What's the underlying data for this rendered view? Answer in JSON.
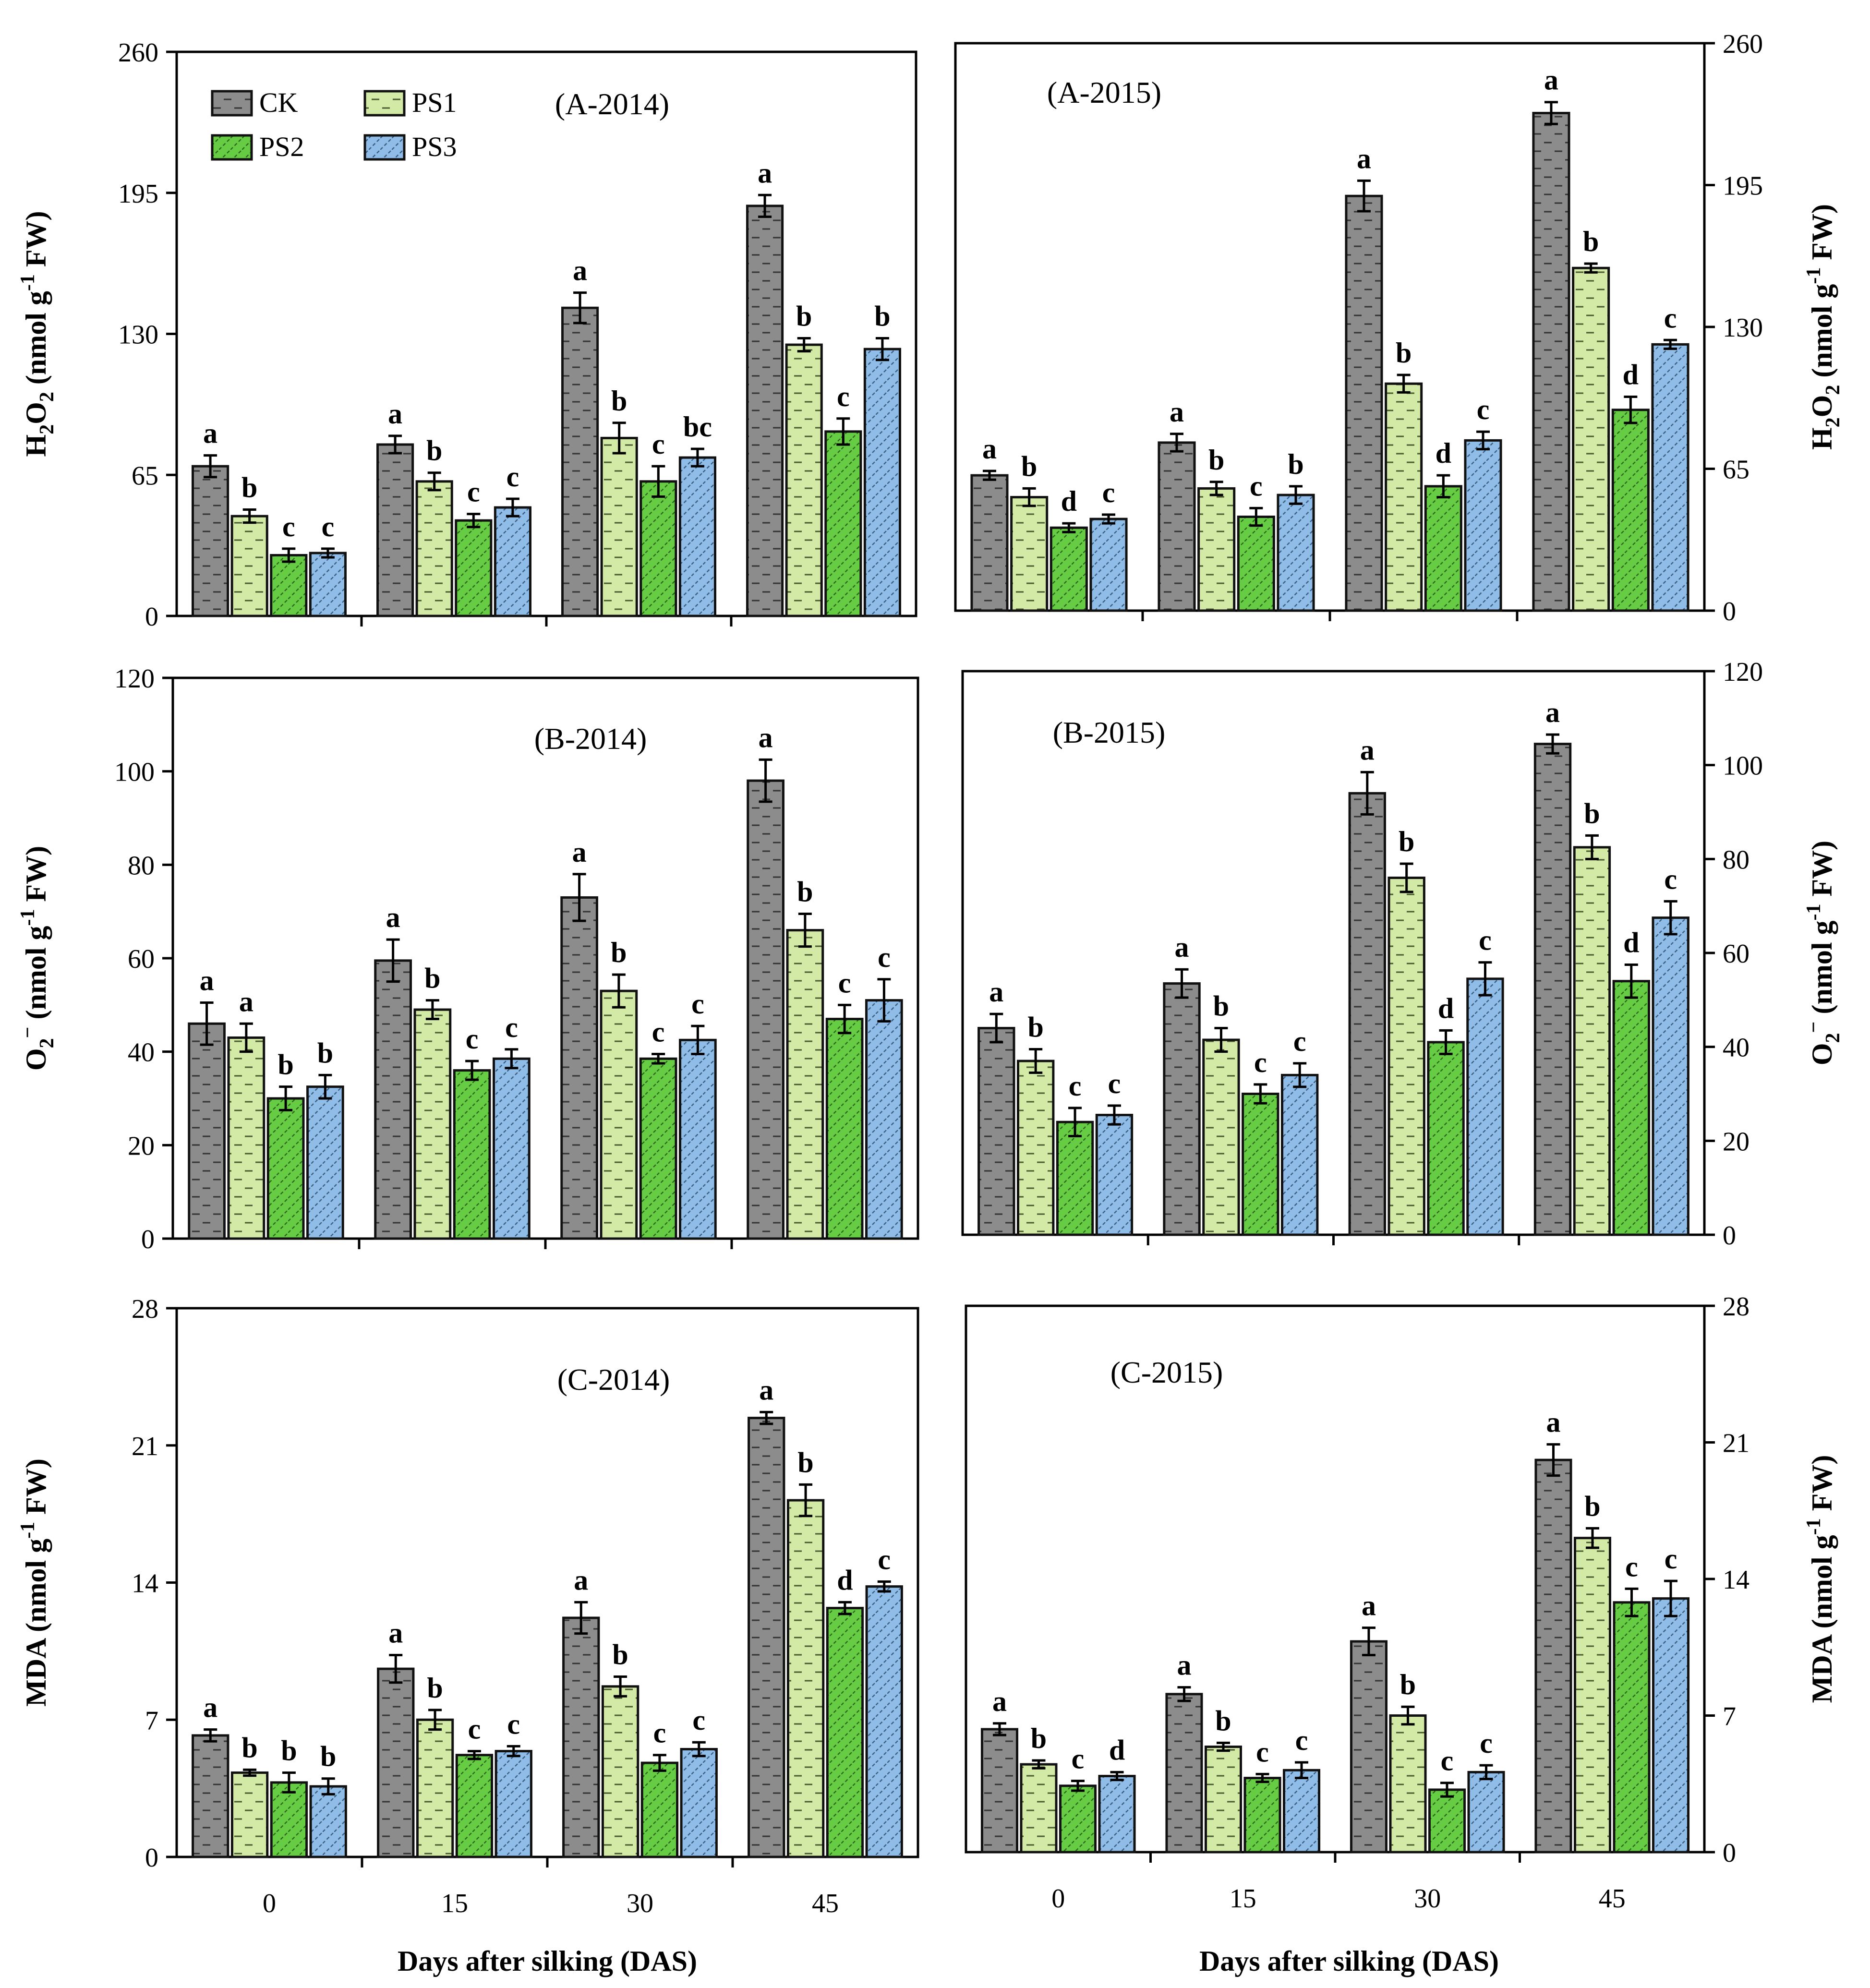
{
  "figure": {
    "series_names": [
      "CK",
      "PS1",
      "PS2",
      "PS3"
    ],
    "colors": {
      "CK": "#8c8c8c",
      "PS1": "#d3e9a6",
      "PS2": "#66cc44",
      "PS3": "#8fbde7"
    },
    "x_axis_title": "Days after silking (DAS)",
    "x_tick_labels": [
      "0",
      "15",
      "30",
      "45"
    ]
  },
  "chart_data": [
    {
      "type": "bar",
      "title": "(A-2014)",
      "categories": [
        "0",
        "15",
        "30",
        "45"
      ],
      "xlabel": "Days after silking (DAS)",
      "ylabel_main": "H",
      "ylabel_sub1": "2",
      "ylabel_mid": "O",
      "ylabel_sub2": "2",
      "ylabel_unit": " (nmol g",
      "ylabel_exp": "-1",
      "ylabel_end": " FW)",
      "ylim": [
        0,
        260
      ],
      "yticks": [
        "0",
        "65",
        "130",
        "195",
        "260"
      ],
      "series": [
        {
          "name": "CK",
          "values": [
            69,
            79,
            142,
            189
          ],
          "errors": [
            5,
            4,
            7,
            5
          ],
          "letters": [
            "a",
            "a",
            "a",
            "a"
          ]
        },
        {
          "name": "PS1",
          "values": [
            46,
            62,
            82,
            125
          ],
          "errors": [
            3,
            4,
            7,
            3
          ],
          "letters": [
            "b",
            "b",
            "b",
            "b"
          ]
        },
        {
          "name": "PS2",
          "values": [
            28,
            44,
            62,
            85
          ],
          "errors": [
            3,
            3,
            7,
            6
          ],
          "letters": [
            "c",
            "c",
            "c",
            "c"
          ]
        },
        {
          "name": "PS3",
          "values": [
            29,
            50,
            73,
            123
          ],
          "errors": [
            2,
            4,
            4,
            5
          ],
          "letters": [
            "c",
            "c",
            "bc",
            "b"
          ]
        }
      ]
    },
    {
      "type": "bar",
      "title": "(A-2015)",
      "categories": [
        "0",
        "15",
        "30",
        "45"
      ],
      "xlabel": "Days after silking (DAS)",
      "ylabel_main": "H",
      "ylabel_sub1": "2",
      "ylabel_mid": "O",
      "ylabel_sub2": "2",
      "ylabel_unit": " (nmol g",
      "ylabel_exp": "-1",
      "ylabel_end": " FW)",
      "ylim": [
        0,
        260
      ],
      "yticks": [
        "0",
        "65",
        "130",
        "195",
        "260"
      ],
      "series": [
        {
          "name": "CK",
          "values": [
            62,
            77,
            190,
            228
          ],
          "errors": [
            2,
            4,
            7,
            5
          ],
          "letters": [
            "a",
            "a",
            "a",
            "a"
          ]
        },
        {
          "name": "PS1",
          "values": [
            52,
            56,
            104,
            157
          ],
          "errors": [
            4,
            3,
            4,
            2
          ],
          "letters": [
            "b",
            "b",
            "b",
            "b"
          ]
        },
        {
          "name": "PS2",
          "values": [
            38,
            43,
            57,
            92
          ],
          "errors": [
            2,
            4,
            5,
            6
          ],
          "letters": [
            "d",
            "c",
            "d",
            "d"
          ]
        },
        {
          "name": "PS3",
          "values": [
            42,
            53,
            78,
            122
          ],
          "errors": [
            2,
            4,
            4,
            2
          ],
          "letters": [
            "c",
            "b",
            "c",
            "c"
          ]
        }
      ]
    },
    {
      "type": "bar",
      "title": "(B-2014)",
      "categories": [
        "0",
        "15",
        "30",
        "45"
      ],
      "xlabel": "Days after silking (DAS)",
      "ylabel_main": "O",
      "ylabel_sub1": "2",
      "ylabel_mid": "",
      "ylabel_sub2": "",
      "ylabel_unit": " (nmol g",
      "ylabel_exp": "-1",
      "ylabel_end": " FW)",
      "ylabel_sup": "−",
      "ylim": [
        0,
        120
      ],
      "yticks": [
        "0",
        "20",
        "40",
        "60",
        "80",
        "100",
        "120"
      ],
      "series": [
        {
          "name": "CK",
          "values": [
            46,
            59.5,
            73,
            98
          ],
          "errors": [
            4.5,
            4.5,
            5,
            4.5
          ],
          "letters": [
            "a",
            "a",
            "a",
            "a"
          ]
        },
        {
          "name": "PS1",
          "values": [
            43,
            49,
            53,
            66
          ],
          "errors": [
            3,
            2,
            3.5,
            3.5
          ],
          "letters": [
            "a",
            "b",
            "b",
            "b"
          ]
        },
        {
          "name": "PS2",
          "values": [
            30,
            36,
            38.5,
            47
          ],
          "errors": [
            2.5,
            2,
            1,
            3
          ],
          "letters": [
            "b",
            "c",
            "c",
            "c"
          ]
        },
        {
          "name": "PS3",
          "values": [
            32.5,
            38.5,
            42.5,
            51
          ],
          "errors": [
            2.5,
            2,
            3,
            4.5
          ],
          "letters": [
            "b",
            "c",
            "c",
            "c"
          ]
        }
      ]
    },
    {
      "type": "bar",
      "title": "(B-2015)",
      "categories": [
        "0",
        "15",
        "30",
        "45"
      ],
      "xlabel": "Days after silking (DAS)",
      "ylabel_main": "O",
      "ylabel_sub1": "2",
      "ylabel_mid": "",
      "ylabel_sub2": "",
      "ylabel_unit": " (nmol g",
      "ylabel_exp": "-1",
      "ylabel_end": " FW)",
      "ylabel_sup": "−",
      "ylim": [
        0,
        120
      ],
      "yticks": [
        "0",
        "20",
        "40",
        "60",
        "80",
        "100",
        "120"
      ],
      "series": [
        {
          "name": "CK",
          "values": [
            44,
            53.5,
            94,
            104.5
          ],
          "errors": [
            3,
            3,
            4.5,
            2
          ],
          "letters": [
            "a",
            "a",
            "a",
            "a"
          ]
        },
        {
          "name": "PS1",
          "values": [
            37,
            41.5,
            76,
            82.5
          ],
          "errors": [
            2.5,
            2.5,
            3,
            2.5
          ],
          "letters": [
            "b",
            "b",
            "b",
            "b"
          ]
        },
        {
          "name": "PS2",
          "values": [
            24,
            30,
            41,
            54
          ],
          "errors": [
            3,
            2,
            2.5,
            3.5
          ],
          "letters": [
            "c",
            "c",
            "d",
            "d"
          ]
        },
        {
          "name": "PS3",
          "values": [
            25.5,
            34,
            54.5,
            67.5
          ],
          "errors": [
            2,
            2.5,
            3.5,
            3.5
          ],
          "letters": [
            "c",
            "c",
            "c",
            "c"
          ]
        }
      ]
    },
    {
      "type": "bar",
      "title": "(C-2014)",
      "categories": [
        "0",
        "15",
        "30",
        "45"
      ],
      "xlabel": "Days after silking (DAS)",
      "ylabel_main": "MDA",
      "ylabel_sub1": "",
      "ylabel_mid": "",
      "ylabel_sub2": "",
      "ylabel_unit": " (nmol g",
      "ylabel_exp": "-1",
      "ylabel_end": " FW)",
      "ylim": [
        0,
        28
      ],
      "yticks": [
        "0",
        "7",
        "14",
        "21",
        "28"
      ],
      "series": [
        {
          "name": "CK",
          "values": [
            6.2,
            9.6,
            12.2,
            22.4
          ],
          "errors": [
            0.3,
            0.7,
            0.8,
            0.3
          ],
          "letters": [
            "a",
            "a",
            "a",
            "a"
          ]
        },
        {
          "name": "PS1",
          "values": [
            4.3,
            7,
            8.7,
            18.2
          ],
          "errors": [
            0.15,
            0.5,
            0.5,
            0.8
          ],
          "letters": [
            "b",
            "b",
            "b",
            "b"
          ]
        },
        {
          "name": "PS2",
          "values": [
            3.8,
            5.2,
            4.8,
            12.7
          ],
          "errors": [
            0.5,
            0.2,
            0.4,
            0.3
          ],
          "letters": [
            "b",
            "c",
            "c",
            "d"
          ]
        },
        {
          "name": "PS3",
          "values": [
            3.6,
            5.4,
            5.5,
            13.8
          ],
          "errors": [
            0.4,
            0.25,
            0.35,
            0.25
          ],
          "letters": [
            "b",
            "c",
            "c",
            "c"
          ]
        }
      ]
    },
    {
      "type": "bar",
      "title": "(C-2015)",
      "categories": [
        "0",
        "15",
        "30",
        "45"
      ],
      "xlabel": "Days after silking (DAS)",
      "ylabel_main": "MDA",
      "ylabel_sub1": "",
      "ylabel_mid": "",
      "ylabel_sub2": "",
      "ylabel_unit": " (nmol g",
      "ylabel_exp": "-1",
      "ylabel_end": " FW)",
      "ylim": [
        0,
        28
      ],
      "yticks": [
        "0",
        "7",
        "14",
        "21",
        "28"
      ],
      "series": [
        {
          "name": "CK",
          "values": [
            6.3,
            8.1,
            10.8,
            20.1
          ],
          "errors": [
            0.3,
            0.35,
            0.7,
            0.8
          ],
          "letters": [
            "a",
            "a",
            "a",
            "a"
          ]
        },
        {
          "name": "PS1",
          "values": [
            4.5,
            5.4,
            7,
            16.1
          ],
          "errors": [
            0.2,
            0.2,
            0.45,
            0.5
          ],
          "letters": [
            "b",
            "b",
            "b",
            "b"
          ]
        },
        {
          "name": "PS2",
          "values": [
            3.4,
            3.8,
            3.2,
            12.8
          ],
          "errors": [
            0.25,
            0.2,
            0.35,
            0.7
          ],
          "letters": [
            "c",
            "c",
            "c",
            "c"
          ]
        },
        {
          "name": "PS3",
          "values": [
            3.9,
            4.2,
            4.1,
            13
          ],
          "errors": [
            0.2,
            0.4,
            0.35,
            0.9
          ],
          "letters": [
            "d",
            "c",
            "c",
            "c"
          ]
        }
      ]
    }
  ]
}
